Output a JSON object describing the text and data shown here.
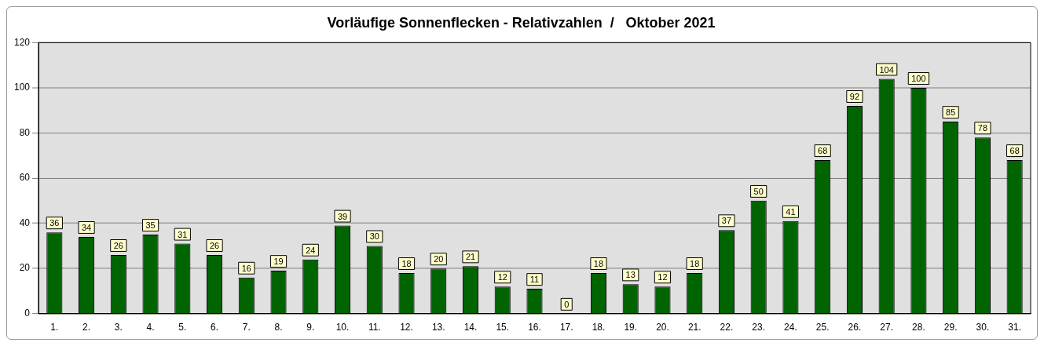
{
  "chart_data": {
    "type": "bar",
    "title": "Vorläufige Sonnenflecken - Relativzahlen  /   Oktober 2021",
    "categories": [
      "1.",
      "2.",
      "3.",
      "4.",
      "5.",
      "6.",
      "7.",
      "8.",
      "9.",
      "10.",
      "11.",
      "12.",
      "13.",
      "14.",
      "15.",
      "16.",
      "17.",
      "18.",
      "19.",
      "20.",
      "21.",
      "22.",
      "23.",
      "24.",
      "25.",
      "26.",
      "27.",
      "28.",
      "29.",
      "30.",
      "31."
    ],
    "values": [
      36,
      34,
      26,
      35,
      31,
      26,
      16,
      19,
      24,
      39,
      30,
      18,
      20,
      21,
      12,
      11,
      0,
      18,
      13,
      12,
      18,
      37,
      50,
      41,
      68,
      92,
      104,
      100,
      85,
      78,
      68
    ],
    "color": "#006400",
    "ylim": [
      0,
      120
    ],
    "yticks": [
      0,
      20,
      40,
      60,
      80,
      100,
      120
    ],
    "grid": "y",
    "legend": false,
    "data_labels": true
  }
}
